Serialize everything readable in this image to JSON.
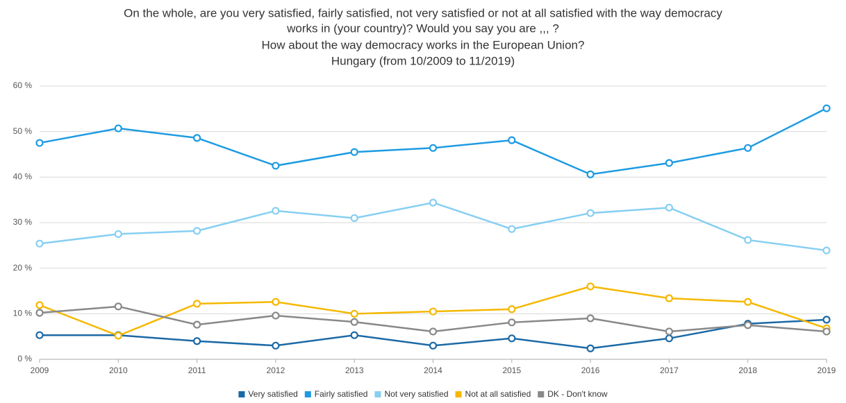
{
  "chart_data": {
    "type": "line",
    "title": [
      "On the whole, are you very satisfied, fairly satisfied, not very satisfied or not at all satisfied with the way democracy",
      "works in (your country)? Would you say you are ,,, ?",
      "How about the way democracy works in the European Union?"
    ],
    "subtitle": "Hungary (from 10/2009 to 11/2019)",
    "x": [
      2009,
      2010,
      2011,
      2012,
      2013,
      2014,
      2015,
      2016,
      2017,
      2018,
      2019
    ],
    "xlim": [
      2009,
      2019
    ],
    "xticks": [
      2009,
      2010,
      2011,
      2012,
      2013,
      2014,
      2015,
      2016,
      2017,
      2018,
      2019
    ],
    "ylim": [
      0,
      60
    ],
    "yticks": [
      {
        "value": 0,
        "label": "0 %"
      },
      {
        "value": 10,
        "label": "10 %"
      },
      {
        "value": 20,
        "label": "20 %"
      },
      {
        "value": 30,
        "label": "30 %"
      },
      {
        "value": 40,
        "label": "40 %"
      },
      {
        "value": 50,
        "label": "50 %"
      },
      {
        "value": 60,
        "label": "60 %"
      }
    ],
    "grid": true,
    "legend": "bottom",
    "series": [
      {
        "name": "Very satisfied",
        "color": "#1b69a6",
        "values": [
          5.3,
          5.3,
          4.0,
          3.0,
          5.3,
          3.0,
          4.6,
          2.4,
          4.6,
          7.8,
          8.7
        ]
      },
      {
        "name": "Fairly satisfied",
        "color": "#1d9be2",
        "values": [
          47.5,
          50.7,
          48.6,
          42.5,
          45.5,
          46.4,
          48.1,
          40.6,
          43.1,
          46.4,
          55.1
        ]
      },
      {
        "name": "Not very satisfied",
        "color": "#86cff2",
        "values": [
          25.4,
          27.5,
          28.2,
          32.6,
          31.0,
          34.4,
          28.6,
          32.1,
          33.3,
          26.2,
          23.9
        ]
      },
      {
        "name": "Not at all satisfied",
        "color": "#f5b800",
        "values": [
          11.9,
          5.2,
          12.2,
          12.6,
          10.0,
          10.5,
          11.0,
          16.0,
          13.4,
          12.6,
          6.8
        ]
      },
      {
        "name": "DK - Don't know",
        "color": "#888888",
        "values": [
          10.2,
          11.6,
          7.6,
          9.6,
          8.2,
          6.1,
          8.1,
          9.0,
          6.1,
          7.5,
          6.1
        ]
      }
    ]
  }
}
